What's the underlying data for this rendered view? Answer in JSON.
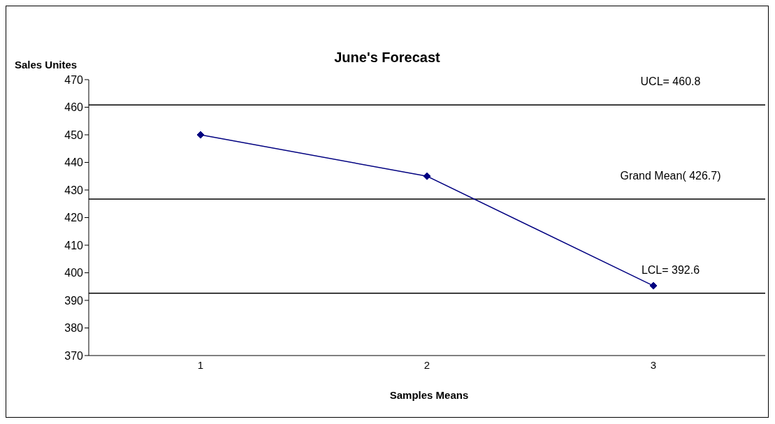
{
  "chart_data": {
    "type": "line",
    "title": "June's Forecast",
    "xlabel": "Samples Means",
    "ylabel": "Sales Unites",
    "categories": [
      "1",
      "2",
      "3"
    ],
    "series": [
      {
        "color": "#000080",
        "values": [
          450,
          435,
          395.3
        ]
      }
    ],
    "ylim": [
      370,
      470
    ],
    "yticks": [
      370,
      380,
      390,
      400,
      410,
      420,
      430,
      440,
      450,
      460,
      470
    ],
    "marker": "diamond",
    "line_style": "solid",
    "ref_lines": [
      {
        "axis": "y",
        "value": 460.8,
        "label": "UCL= 460.8",
        "color": "#000000"
      },
      {
        "axis": "y",
        "value": 426.7,
        "label": "Grand Mean( 426.7)",
        "color": "#000000"
      },
      {
        "axis": "y",
        "value": 392.6,
        "label": "LCL= 392.6",
        "color": "#000000"
      }
    ]
  }
}
